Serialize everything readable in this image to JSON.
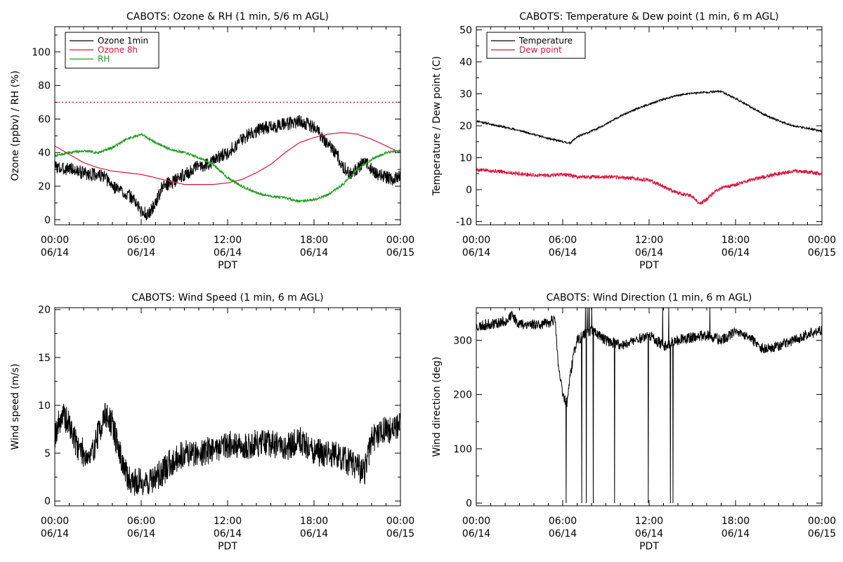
{
  "colors": {
    "black": "#000000",
    "crimson": "#dc143c",
    "green": "#1e9c1e",
    "ref_line": "#e8101e"
  },
  "chart_data": [
    {
      "id": "ozone_rh",
      "type": "line",
      "title": "CABOTS: Ozone & RH (1 min, 5/6 m AGL)",
      "xlabel": "PDT",
      "ylabel": "Ozone (ppbv) / RH (%)",
      "xlim": [
        0,
        24
      ],
      "ylim": [
        -3,
        115
      ],
      "yticks": [
        0,
        20,
        40,
        60,
        80,
        100
      ],
      "xticks": [
        0,
        6,
        12,
        18,
        24
      ],
      "xtick_labels": [
        [
          "00:00",
          "06/14"
        ],
        [
          "06:00",
          "06/14"
        ],
        [
          "12:00",
          "06/14"
        ],
        [
          "18:00",
          "06/14"
        ],
        [
          "00:00",
          "06/15"
        ]
      ],
      "legend_position": "top-left",
      "reference_line": {
        "y": 70,
        "style": "dotted",
        "color": "ref_line"
      },
      "series": [
        {
          "name": "Ozone 1min",
          "color": "black",
          "noise": 4,
          "noise_seed": 3,
          "x": [
            0,
            0.5,
            1,
            1.5,
            2,
            2.5,
            3,
            3.5,
            4,
            4.5,
            5,
            5.5,
            6,
            6.5,
            7,
            7.5,
            8,
            8.5,
            9,
            9.5,
            10,
            10.5,
            11,
            11.5,
            12,
            12.5,
            13,
            13.5,
            14,
            14.5,
            15,
            15.5,
            16,
            16.5,
            17,
            17.5,
            18,
            18.5,
            19,
            19.5,
            20,
            20.5,
            21,
            21.5,
            22,
            22.5,
            23,
            23.5,
            24
          ],
          "y": [
            32,
            30,
            31,
            29,
            28,
            27,
            27,
            25,
            20,
            18,
            15,
            12,
            5,
            3,
            10,
            20,
            22,
            24,
            27,
            29,
            32,
            33,
            35,
            38,
            40,
            44,
            48,
            51,
            53,
            55,
            55,
            56,
            57,
            58,
            59,
            57,
            55,
            50,
            45,
            40,
            32,
            27,
            30,
            35,
            30,
            27,
            25,
            24,
            26
          ]
        },
        {
          "name": "Ozone 8h",
          "color": "crimson",
          "x": [
            0,
            1,
            2,
            3,
            4,
            5,
            6,
            7,
            8,
            9,
            10,
            11,
            12,
            13,
            14,
            15,
            16,
            17,
            18,
            19,
            20,
            21,
            22,
            23,
            24
          ],
          "y": [
            44,
            39,
            34,
            31,
            29,
            28,
            27,
            25,
            23,
            21,
            21,
            21,
            22,
            24,
            28,
            33,
            40,
            46,
            49,
            51,
            52,
            51,
            48,
            44,
            40
          ]
        },
        {
          "name": "RH",
          "color": "green",
          "noise": 0.8,
          "noise_seed": 7,
          "x": [
            0,
            1,
            2,
            3,
            4,
            5,
            6,
            7,
            8,
            9,
            10,
            11,
            12,
            13,
            14,
            15,
            16,
            17,
            18,
            19,
            20,
            21,
            22,
            23,
            24
          ],
          "y": [
            38,
            40,
            41,
            40,
            43,
            48,
            51,
            46,
            42,
            40,
            37,
            33,
            25,
            20,
            16,
            14,
            13,
            11,
            12,
            15,
            21,
            30,
            36,
            40,
            41
          ]
        }
      ]
    },
    {
      "id": "temp_dew",
      "type": "line",
      "title": "CABOTS: Temperature & Dew point (1 min, 6 m AGL)",
      "xlabel": "PDT",
      "ylabel": "Temperature / Dew point (C)",
      "xlim": [
        0,
        24
      ],
      "ylim": [
        -11,
        51
      ],
      "yticks": [
        -10,
        0,
        10,
        20,
        30,
        40,
        50
      ],
      "xticks": [
        0,
        6,
        12,
        18,
        24
      ],
      "xtick_labels": [
        [
          "00:00",
          "06/14"
        ],
        [
          "06:00",
          "06/14"
        ],
        [
          "12:00",
          "06/14"
        ],
        [
          "18:00",
          "06/14"
        ],
        [
          "00:00",
          "06/15"
        ]
      ],
      "legend_position": "top-left",
      "series": [
        {
          "name": "Temperature",
          "color": "black",
          "noise": 0.3,
          "noise_seed": 11,
          "x": [
            0,
            1,
            2,
            3,
            4,
            5,
            6,
            6.5,
            7,
            8,
            9,
            10,
            11,
            12,
            13,
            14,
            15,
            16,
            17,
            18,
            19,
            20,
            21,
            22,
            23,
            24
          ],
          "y": [
            21.5,
            20.5,
            19.5,
            18.5,
            17.3,
            16,
            15,
            14.5,
            16.5,
            18.3,
            20.5,
            23,
            25,
            26.7,
            28.3,
            29.5,
            30.2,
            30.5,
            30.8,
            28.5,
            26,
            23.5,
            21.5,
            20,
            19.2,
            18.3
          ]
        },
        {
          "name": "Dew point",
          "color": "crimson",
          "noise": 0.6,
          "noise_seed": 5,
          "x": [
            0,
            1,
            2,
            3,
            4,
            5,
            6,
            7,
            8,
            9,
            10,
            11,
            12,
            13,
            14,
            15,
            15.5,
            16,
            16.5,
            17,
            18,
            19,
            20,
            21,
            22,
            23,
            24
          ],
          "y": [
            6.2,
            6,
            5.5,
            5,
            4.5,
            4.5,
            4.8,
            4,
            4,
            4,
            3.8,
            3.5,
            3,
            1,
            -1,
            -2,
            -4.5,
            -3,
            -1,
            0.5,
            1.5,
            3,
            4,
            5,
            5.8,
            5.5,
            5
          ]
        }
      ]
    },
    {
      "id": "wind_speed",
      "type": "line",
      "title": "CABOTS: Wind Speed (1 min, 6 m AGL)",
      "xlabel": "PDT",
      "ylabel": "Wind speed (m/s)",
      "xlim": [
        0,
        24
      ],
      "ylim": [
        -0.5,
        20.2
      ],
      "yticks": [
        0,
        5,
        10,
        15,
        20
      ],
      "xticks": [
        0,
        6,
        12,
        18,
        24
      ],
      "xtick_labels": [
        [
          "00:00",
          "06/14"
        ],
        [
          "06:00",
          "06/14"
        ],
        [
          "12:00",
          "06/14"
        ],
        [
          "18:00",
          "06/14"
        ],
        [
          "00:00",
          "06/15"
        ]
      ],
      "series": [
        {
          "name": "Wind speed",
          "color": "black",
          "noise": 1.5,
          "noise_seed": 19,
          "x": [
            0,
            0.5,
            1,
            1.5,
            2,
            2.5,
            3,
            3.5,
            4,
            4.5,
            5,
            5.5,
            6,
            6.5,
            7,
            7.5,
            8,
            9,
            10,
            11,
            12,
            13,
            14,
            15,
            16,
            17,
            18,
            19,
            20,
            21,
            21.5,
            22,
            22.5,
            23,
            23.5,
            24
          ],
          "y": [
            7,
            9,
            8,
            6,
            5,
            4.5,
            7,
            9,
            8,
            5,
            2.5,
            2,
            2,
            2,
            2.5,
            3,
            4,
            5,
            5,
            5.5,
            6,
            5.5,
            6,
            6,
            5.5,
            6.5,
            5,
            5,
            4.5,
            3.5,
            3,
            6.5,
            7,
            7.5,
            7.5,
            8
          ]
        }
      ]
    },
    {
      "id": "wind_dir",
      "type": "line",
      "title": "CABOTS: Wind Direction (1 min, 6 m AGL)",
      "xlabel": "PDT",
      "ylabel": "Wind direction (deg)",
      "xlim": [
        0,
        24
      ],
      "ylim": [
        -5,
        360
      ],
      "yticks": [
        0,
        100,
        200,
        300
      ],
      "xticks": [
        0,
        6,
        12,
        18,
        24
      ],
      "xtick_labels": [
        [
          "00:00",
          "06/14"
        ],
        [
          "06:00",
          "06/14"
        ],
        [
          "12:00",
          "06/14"
        ],
        [
          "18:00",
          "06/14"
        ],
        [
          "00:00",
          "06/15"
        ]
      ],
      "series": [
        {
          "name": "Wind direction",
          "color": "black",
          "noise": 10,
          "noise_seed": 23,
          "x": [
            0,
            1,
            2,
            2.5,
            3,
            4,
            5,
            5.3,
            5.5,
            5.7,
            6,
            6.3,
            6.5,
            6.8,
            7,
            8,
            9,
            10,
            11,
            12,
            13,
            14,
            15,
            16,
            17,
            18,
            19,
            19.5,
            20,
            21,
            22,
            23,
            24
          ],
          "y": [
            325,
            330,
            335,
            345,
            330,
            330,
            330,
            340,
            330,
            250,
            200,
            185,
            230,
            280,
            300,
            320,
            300,
            290,
            300,
            310,
            290,
            300,
            305,
            310,
            300,
            315,
            305,
            290,
            285,
            290,
            300,
            310,
            320
          ]
        }
      ]
    }
  ]
}
